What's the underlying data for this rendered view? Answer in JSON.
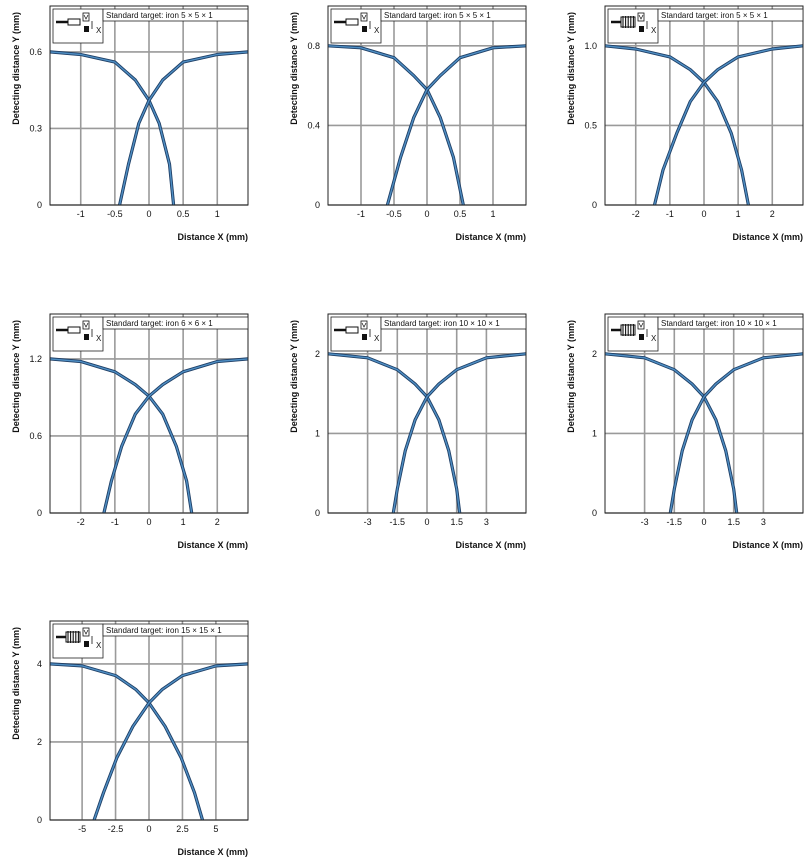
{
  "chart_data": [
    {
      "type": "line",
      "legend": "Standard target: iron 5 × 5 × 1",
      "sensor_icon": "small-cylinder-sensor-icon",
      "xlabel": "Distance X (mm)",
      "ylabel": "Detecting distance Y (mm)",
      "xlim": [
        -1.45,
        1.45
      ],
      "ylim": [
        0,
        0.78
      ],
      "xticks": [
        -1,
        -0.5,
        0,
        0.5,
        1
      ],
      "xtick_labels": [
        "-1",
        "-0.5",
        "0",
        "0.5",
        "1"
      ],
      "yticks": [
        0,
        0.3,
        0.6
      ],
      "ytick_labels": [
        "0",
        "0.3",
        "0.6"
      ],
      "grid": true,
      "series": [
        {
          "x": [
            -1.45,
            -1.0,
            -0.5,
            -0.2,
            0.0,
            0.15,
            0.3,
            0.36
          ],
          "y": [
            0.6,
            0.59,
            0.56,
            0.49,
            0.41,
            0.32,
            0.16,
            0.0
          ]
        },
        {
          "x": [
            1.45,
            1.0,
            0.5,
            0.2,
            0.0,
            -0.15,
            -0.3,
            -0.43
          ],
          "y": [
            0.6,
            0.59,
            0.56,
            0.49,
            0.41,
            0.32,
            0.16,
            0.0
          ]
        }
      ]
    },
    {
      "type": "line",
      "legend": "Standard target: iron 5 × 5 × 1",
      "sensor_icon": "small-cylinder-sensor-icon",
      "xlabel": "Distance X (mm)",
      "ylabel": "Detecting distance Y (mm)",
      "xlim": [
        -1.5,
        1.5
      ],
      "ylim": [
        0,
        1.0
      ],
      "xticks": [
        -1,
        -0.5,
        0,
        0.5,
        1
      ],
      "xtick_labels": [
        "-1",
        "-0.5",
        "0",
        "0.5",
        "1"
      ],
      "yticks": [
        0,
        0.4,
        0.8
      ],
      "ytick_labels": [
        "0",
        "0.4",
        "0.8"
      ],
      "grid": true,
      "series": [
        {
          "x": [
            -1.5,
            -1.0,
            -0.5,
            -0.2,
            0.0,
            0.2,
            0.4,
            0.55
          ],
          "y": [
            0.8,
            0.79,
            0.74,
            0.65,
            0.58,
            0.44,
            0.24,
            0.0
          ]
        },
        {
          "x": [
            1.5,
            1.0,
            0.5,
            0.2,
            0.0,
            -0.2,
            -0.4,
            -0.6
          ],
          "y": [
            0.8,
            0.79,
            0.74,
            0.65,
            0.58,
            0.44,
            0.24,
            0.0
          ]
        }
      ]
    },
    {
      "type": "line",
      "legend": "Standard target: iron 5 × 5 × 1",
      "sensor_icon": "threaded-sensor-icon",
      "xlabel": "Distance X (mm)",
      "ylabel": "Detecting distance Y (mm)",
      "xlim": [
        -2.9,
        2.9
      ],
      "ylim": [
        0,
        1.25
      ],
      "xticks": [
        -2,
        -1,
        0,
        1,
        2
      ],
      "xtick_labels": [
        "-2",
        "-1",
        "0",
        "1",
        "2"
      ],
      "yticks": [
        0,
        0.5,
        1.0
      ],
      "ytick_labels": [
        "0",
        "0.5",
        "1.0"
      ],
      "grid": true,
      "series": [
        {
          "x": [
            -2.9,
            -2.0,
            -1.0,
            -0.4,
            0.0,
            0.4,
            0.8,
            1.1,
            1.3
          ],
          "y": [
            1.0,
            0.98,
            0.93,
            0.85,
            0.77,
            0.65,
            0.45,
            0.22,
            0.0
          ]
        },
        {
          "x": [
            2.9,
            2.0,
            1.0,
            0.4,
            0.0,
            -0.4,
            -0.8,
            -1.2,
            -1.45
          ],
          "y": [
            1.0,
            0.98,
            0.93,
            0.85,
            0.77,
            0.65,
            0.45,
            0.22,
            0.0
          ]
        }
      ]
    },
    {
      "type": "line",
      "legend": "Standard target: iron 6 × 6 × 1",
      "sensor_icon": "small-cylinder-sensor-icon",
      "xlabel": "Distance X (mm)",
      "ylabel": "Detecting distance Y (mm)",
      "xlim": [
        -2.9,
        2.9
      ],
      "ylim": [
        0,
        1.55
      ],
      "xticks": [
        -2,
        -1,
        0,
        1,
        2
      ],
      "xtick_labels": [
        "-2",
        "-1",
        "0",
        "1",
        "2"
      ],
      "yticks": [
        0,
        0.6,
        1.2
      ],
      "ytick_labels": [
        "0",
        "0.6",
        "1.2"
      ],
      "grid": true,
      "series": [
        {
          "x": [
            -2.9,
            -2.0,
            -1.0,
            -0.4,
            0.0,
            0.4,
            0.8,
            1.1,
            1.25
          ],
          "y": [
            1.2,
            1.18,
            1.1,
            1.0,
            0.91,
            0.77,
            0.52,
            0.25,
            0.0
          ]
        },
        {
          "x": [
            2.9,
            2.0,
            1.0,
            0.4,
            0.0,
            -0.4,
            -0.8,
            -1.1,
            -1.32
          ],
          "y": [
            1.2,
            1.18,
            1.1,
            1.0,
            0.91,
            0.77,
            0.52,
            0.25,
            0.0
          ]
        }
      ]
    },
    {
      "type": "line",
      "legend": "Standard target: iron 10 × 10 × 1",
      "sensor_icon": "small-cylinder-sensor-icon",
      "xlabel": "Distance X (mm)",
      "ylabel": "Detecting distance Y (mm)",
      "xlim": [
        -5.0,
        5.0
      ],
      "ylim": [
        0,
        2.5
      ],
      "xticks": [
        -3,
        -1.5,
        0,
        1.5,
        3
      ],
      "xtick_labels": [
        "-3",
        "-1.5",
        "0",
        "1.5",
        "3"
      ],
      "yticks": [
        0,
        1,
        2
      ],
      "ytick_labels": [
        "0",
        "1",
        "2"
      ],
      "grid": true,
      "series": [
        {
          "x": [
            -5.0,
            -3.0,
            -1.5,
            -0.6,
            0.0,
            0.6,
            1.1,
            1.5,
            1.65
          ],
          "y": [
            2.0,
            1.95,
            1.8,
            1.62,
            1.46,
            1.17,
            0.78,
            0.3,
            0.0
          ]
        },
        {
          "x": [
            5.0,
            3.0,
            1.5,
            0.6,
            0.0,
            -0.6,
            -1.1,
            -1.5,
            -1.7
          ],
          "y": [
            2.0,
            1.95,
            1.8,
            1.62,
            1.46,
            1.17,
            0.78,
            0.3,
            0.0
          ]
        }
      ]
    },
    {
      "type": "line",
      "legend": "Standard target: iron 10 × 10 × 1",
      "sensor_icon": "threaded-sensor-icon",
      "xlabel": "Distance X (mm)",
      "ylabel": "Detecting distance Y (mm)",
      "xlim": [
        -5.0,
        5.0
      ],
      "ylim": [
        0,
        2.5
      ],
      "xticks": [
        -3,
        -1.5,
        0,
        1.5,
        3
      ],
      "xtick_labels": [
        "-3",
        "-1.5",
        "0",
        "1.5",
        "3"
      ],
      "yticks": [
        0,
        1,
        2
      ],
      "ytick_labels": [
        "0",
        "1",
        "2"
      ],
      "grid": true,
      "series": [
        {
          "x": [
            -5.0,
            -3.0,
            -1.5,
            -0.6,
            0.0,
            0.6,
            1.1,
            1.5,
            1.65
          ],
          "y": [
            2.0,
            1.95,
            1.8,
            1.62,
            1.46,
            1.17,
            0.78,
            0.3,
            0.0
          ]
        },
        {
          "x": [
            5.0,
            3.0,
            1.5,
            0.6,
            0.0,
            -0.6,
            -1.1,
            -1.5,
            -1.7
          ],
          "y": [
            2.0,
            1.95,
            1.8,
            1.62,
            1.46,
            1.17,
            0.78,
            0.3,
            0.0
          ]
        }
      ]
    },
    {
      "type": "line",
      "legend": "Standard target: iron 15 × 15 × 1",
      "sensor_icon": "threaded-sensor-icon",
      "xlabel": "Distance X (mm)",
      "ylabel": "Detecting distance Y (mm)",
      "xlim": [
        -7.4,
        7.4
      ],
      "ylim": [
        0,
        5.1
      ],
      "xticks": [
        -5,
        -2.5,
        0,
        2.5,
        5
      ],
      "xtick_labels": [
        "-5",
        "-2.5",
        "0",
        "2.5",
        "5"
      ],
      "yticks": [
        0,
        2,
        4
      ],
      "ytick_labels": [
        "0",
        "2",
        "4"
      ],
      "grid": true,
      "series": [
        {
          "x": [
            -7.4,
            -5.0,
            -2.5,
            -1.0,
            0.0,
            1.2,
            2.4,
            3.4,
            4.0
          ],
          "y": [
            4.0,
            3.95,
            3.7,
            3.35,
            3.0,
            2.4,
            1.6,
            0.7,
            0.0
          ]
        },
        {
          "x": [
            7.4,
            5.0,
            2.5,
            1.0,
            0.0,
            -1.2,
            -2.4,
            -3.4,
            -4.1
          ],
          "y": [
            4.0,
            3.95,
            3.7,
            3.35,
            3.0,
            2.4,
            1.6,
            0.7,
            0.0
          ]
        }
      ]
    }
  ]
}
